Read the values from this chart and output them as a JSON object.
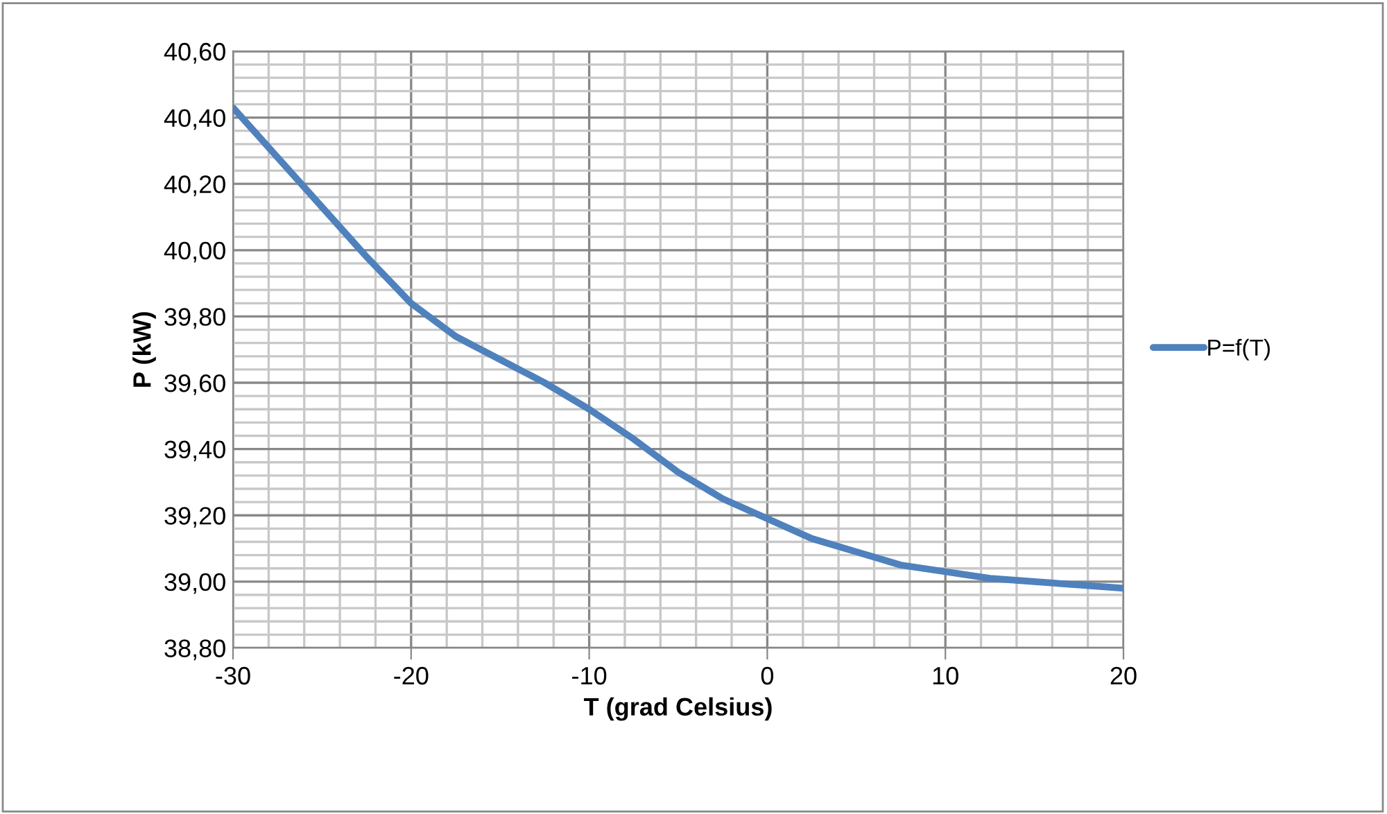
{
  "chart_data": {
    "type": "line",
    "xlabel": "T (grad Celsius)",
    "ylabel": "P (kW)",
    "x": [
      -30,
      -27.5,
      -25,
      -22.5,
      -20,
      -17.5,
      -15,
      -12.5,
      -10,
      -7.5,
      -5,
      -2.5,
      0,
      2.5,
      5,
      7.5,
      10,
      12.5,
      15,
      17.5,
      20
    ],
    "series": [
      {
        "name": "P=f(T)",
        "color": "#4f81bd",
        "values": [
          40.43,
          40.28,
          40.13,
          39.98,
          39.84,
          39.74,
          39.67,
          39.6,
          39.52,
          39.43,
          39.33,
          39.25,
          39.19,
          39.13,
          39.09,
          39.05,
          39.03,
          39.01,
          39.0,
          38.99,
          38.98
        ]
      }
    ],
    "xlim": [
      -30,
      20
    ],
    "xticks": [
      -30,
      -20,
      -10,
      0,
      10,
      20
    ],
    "ylim": [
      38.8,
      40.6
    ],
    "yticks": [
      {
        "value": 38.8,
        "label": "38,80"
      },
      {
        "value": 39.0,
        "label": "39,00"
      },
      {
        "value": 39.2,
        "label": "39,20"
      },
      {
        "value": 39.4,
        "label": "39,40"
      },
      {
        "value": 39.6,
        "label": "39,60"
      },
      {
        "value": 39.8,
        "label": "39,80"
      },
      {
        "value": 40.0,
        "label": "40,00"
      },
      {
        "value": 40.2,
        "label": "40,20"
      },
      {
        "value": 40.4,
        "label": "40,40"
      },
      {
        "value": 40.6,
        "label": "40,60"
      }
    ],
    "grid": true,
    "legend": "right",
    "marker": "none",
    "line_style": "solid"
  }
}
